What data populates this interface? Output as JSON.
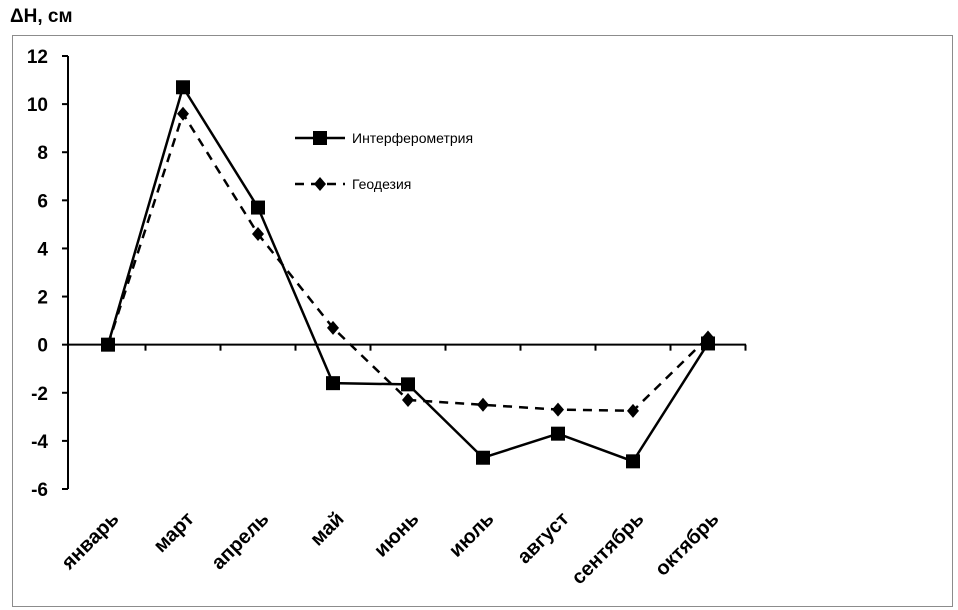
{
  "chart_data": {
    "type": "line",
    "ylabel": "ΔH, см",
    "categories": [
      "январь",
      "март",
      "апрель",
      "май",
      "июнь",
      "июль",
      "август",
      "сентябрь",
      "октябрь"
    ],
    "ylim": [
      -6,
      12
    ],
    "yticks": [
      12,
      10,
      8,
      6,
      4,
      2,
      0,
      -2,
      -4,
      -6
    ],
    "series": [
      {
        "name": "Интерферометрия",
        "values": [
          0,
          10.7,
          5.7,
          -1.6,
          -1.65,
          -4.7,
          -3.7,
          -4.85,
          0.05
        ],
        "style": "solid",
        "marker": "square",
        "color": "#000000"
      },
      {
        "name": "Геодезия",
        "values": [
          0,
          9.6,
          4.6,
          0.7,
          -2.3,
          -2.5,
          -2.7,
          -2.75,
          0.3
        ],
        "style": "dashed",
        "marker": "diamond",
        "color": "#000000"
      }
    ],
    "legend_position": "top-right of plot area",
    "grid": false
  }
}
